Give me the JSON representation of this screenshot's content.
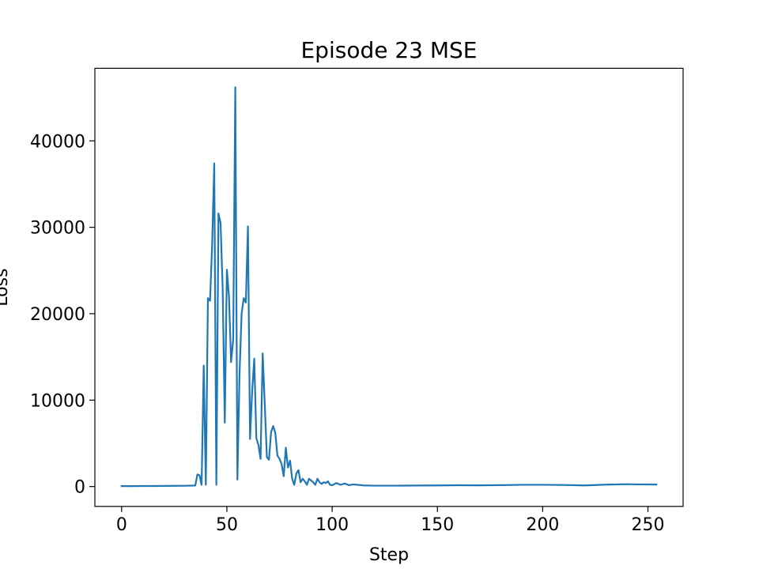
{
  "chart_data": {
    "type": "line",
    "title": "Episode 23 MSE",
    "xlabel": "Step",
    "ylabel": "Loss",
    "xlim": [
      -12.7,
      266.7
    ],
    "ylim": [
      -2300,
      48400
    ],
    "xticks": [
      0,
      50,
      100,
      150,
      200,
      250
    ],
    "xtick_labels": [
      "0",
      "50",
      "100",
      "150",
      "200",
      "250"
    ],
    "yticks": [
      0,
      10000,
      20000,
      30000,
      40000
    ],
    "ytick_labels": [
      "0",
      "10000",
      "20000",
      "30000",
      "40000"
    ],
    "grid": false,
    "legend": "none",
    "series": [
      {
        "name": "Loss",
        "color": "#1f77b4",
        "x": [
          0,
          5,
          10,
          15,
          20,
          25,
          30,
          35,
          36,
          37,
          38,
          39,
          40,
          41,
          42,
          43,
          44,
          45,
          46,
          47,
          48,
          49,
          50,
          51,
          52,
          53,
          54,
          55,
          56,
          57,
          58,
          59,
          60,
          61,
          62,
          63,
          64,
          65,
          66,
          67,
          68,
          69,
          70,
          71,
          72,
          73,
          74,
          75,
          76,
          77,
          78,
          79,
          80,
          81,
          82,
          83,
          84,
          85,
          86,
          87,
          88,
          89,
          90,
          91,
          92,
          93,
          94,
          95,
          96,
          97,
          98,
          99,
          100,
          102,
          104,
          106,
          108,
          110,
          115,
          120,
          130,
          140,
          150,
          160,
          170,
          180,
          190,
          200,
          210,
          220,
          230,
          240,
          245,
          250,
          254
        ],
        "y": [
          50,
          50,
          60,
          60,
          70,
          80,
          90,
          120,
          1400,
          1300,
          200,
          14000,
          200,
          21800,
          21500,
          28000,
          37400,
          200,
          31600,
          30500,
          23000,
          7400,
          25100,
          22000,
          14400,
          17000,
          46200,
          800,
          13000,
          20000,
          21800,
          21300,
          30100,
          5500,
          11000,
          14800,
          5600,
          4800,
          3200,
          15400,
          9500,
          3400,
          3100,
          6300,
          7000,
          6200,
          3600,
          3200,
          2600,
          1200,
          4500,
          2200,
          3000,
          900,
          200,
          1500,
          1900,
          500,
          900,
          600,
          200,
          900,
          700,
          500,
          200,
          900,
          500,
          300,
          500,
          400,
          600,
          200,
          150,
          400,
          200,
          350,
          150,
          250,
          130,
          100,
          100,
          120,
          130,
          150,
          140,
          160,
          200,
          200,
          180,
          130,
          220,
          270,
          250,
          240,
          230
        ]
      }
    ]
  }
}
